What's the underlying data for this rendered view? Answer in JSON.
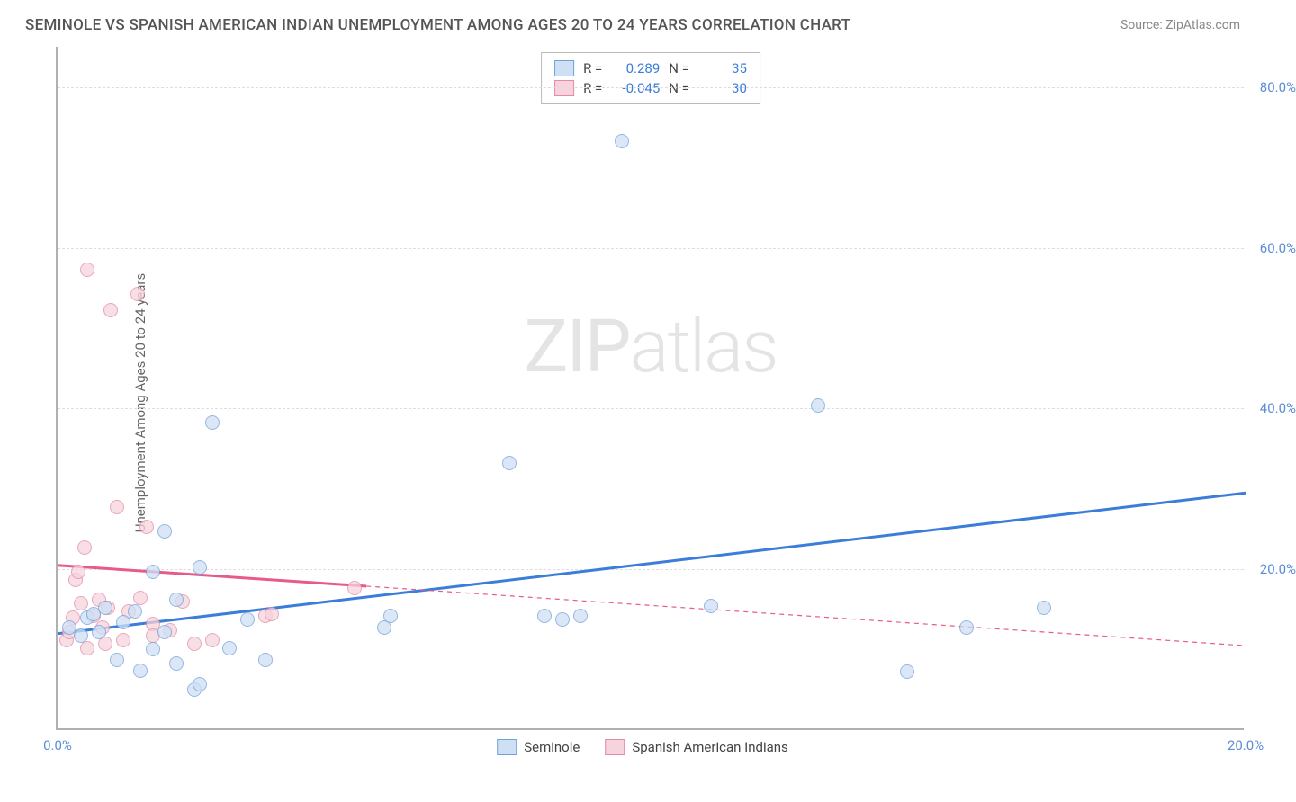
{
  "title": "SEMINOLE VS SPANISH AMERICAN INDIAN UNEMPLOYMENT AMONG AGES 20 TO 24 YEARS CORRELATION CHART",
  "source": "Source: ZipAtlas.com",
  "watermark": {
    "part1": "ZIP",
    "part2": "atlas"
  },
  "y_axis_label": "Unemployment Among Ages 20 to 24 years",
  "chart": {
    "type": "scatter",
    "background_color": "#ffffff",
    "grid_color": "#dddddd",
    "axis_color": "#b0b0b0",
    "xlim": [
      0,
      20
    ],
    "ylim": [
      0,
      85
    ],
    "x_ticks": [
      {
        "v": 0,
        "label": "0.0%"
      },
      {
        "v": 20,
        "label": "20.0%"
      }
    ],
    "y_ticks": [
      {
        "v": 20,
        "label": "20.0%"
      },
      {
        "v": 40,
        "label": "40.0%"
      },
      {
        "v": 60,
        "label": "60.0%"
      },
      {
        "v": 80,
        "label": "80.0%"
      }
    ],
    "series": [
      {
        "name": "Seminole",
        "R": "0.289",
        "N": "35",
        "marker_fill": "#cfe0f4",
        "marker_stroke": "#6fa1db",
        "marker_fill_opacity": 0.75,
        "marker_radius": 8,
        "trend": {
          "x1": 0,
          "y1": 12,
          "x2": 20,
          "y2": 29.5,
          "x_solid_end": 20,
          "color": "#3b7dd8",
          "width": 3
        },
        "points": [
          [
            0.2,
            12.5
          ],
          [
            0.4,
            11.5
          ],
          [
            0.5,
            13.8
          ],
          [
            0.6,
            14.2
          ],
          [
            0.7,
            12.0
          ],
          [
            0.8,
            15.0
          ],
          [
            1.0,
            8.5
          ],
          [
            1.1,
            13.2
          ],
          [
            1.3,
            14.5
          ],
          [
            1.4,
            7.2
          ],
          [
            1.6,
            19.5
          ],
          [
            1.6,
            9.8
          ],
          [
            1.8,
            24.5
          ],
          [
            1.8,
            12.0
          ],
          [
            2.0,
            8.0
          ],
          [
            2.0,
            16.0
          ],
          [
            2.3,
            4.8
          ],
          [
            2.4,
            5.5
          ],
          [
            2.4,
            20.0
          ],
          [
            2.6,
            38.0
          ],
          [
            2.9,
            10.0
          ],
          [
            3.2,
            13.5
          ],
          [
            3.5,
            8.5
          ],
          [
            5.5,
            12.5
          ],
          [
            5.6,
            14.0
          ],
          [
            7.6,
            33.0
          ],
          [
            8.2,
            14.0
          ],
          [
            8.5,
            13.5
          ],
          [
            8.8,
            14.0
          ],
          [
            9.5,
            73.0
          ],
          [
            11.0,
            15.2
          ],
          [
            12.8,
            40.2
          ],
          [
            14.3,
            7.0
          ],
          [
            15.3,
            12.5
          ],
          [
            16.6,
            15.0
          ]
        ]
      },
      {
        "name": "Spanish American Indians",
        "R": "-0.045",
        "N": "30",
        "marker_fill": "#f6d3dd",
        "marker_stroke": "#e48aa4",
        "marker_fill_opacity": 0.75,
        "marker_radius": 8,
        "trend": {
          "x1": 0,
          "y1": 20.5,
          "x2": 20,
          "y2": 10.5,
          "x_solid_end": 5.2,
          "color": "#e75a8a",
          "width": 3
        },
        "points": [
          [
            0.15,
            11.0
          ],
          [
            0.2,
            12.0
          ],
          [
            0.25,
            13.8
          ],
          [
            0.3,
            18.5
          ],
          [
            0.35,
            19.5
          ],
          [
            0.4,
            15.5
          ],
          [
            0.45,
            22.5
          ],
          [
            0.5,
            10.0
          ],
          [
            0.5,
            57.0
          ],
          [
            0.6,
            14.0
          ],
          [
            0.7,
            16.0
          ],
          [
            0.75,
            12.5
          ],
          [
            0.8,
            10.5
          ],
          [
            0.85,
            15.0
          ],
          [
            0.9,
            52.0
          ],
          [
            1.0,
            27.5
          ],
          [
            1.1,
            11.0
          ],
          [
            1.2,
            14.5
          ],
          [
            1.35,
            54.0
          ],
          [
            1.4,
            16.2
          ],
          [
            1.5,
            25.0
          ],
          [
            1.6,
            13.0
          ],
          [
            1.6,
            11.5
          ],
          [
            1.9,
            12.2
          ],
          [
            2.1,
            15.8
          ],
          [
            2.3,
            10.5
          ],
          [
            2.6,
            11.0
          ],
          [
            3.5,
            14.0
          ],
          [
            3.6,
            14.2
          ],
          [
            5.0,
            17.5
          ]
        ]
      }
    ]
  },
  "stats_legend_labels": {
    "R": "R =",
    "N": "N ="
  },
  "bottom_legend": [
    {
      "label": "Seminole",
      "fill": "#cfe0f4",
      "stroke": "#6fa1db"
    },
    {
      "label": "Spanish American Indians",
      "fill": "#f6d3dd",
      "stroke": "#e48aa4"
    }
  ]
}
